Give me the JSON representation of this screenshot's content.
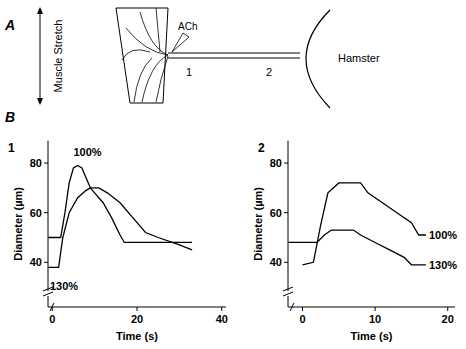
{
  "panel_a": {
    "label": "A",
    "stretch_label": "Muscle Stretch",
    "drug": "ACh",
    "sites": [
      "1",
      "2"
    ],
    "animal": "Hamster"
  },
  "panel_b_label": "B",
  "chart_data": [
    {
      "type": "line",
      "title": "1",
      "xlabel": "Time (s)",
      "ylabel": "Diameter (µm)",
      "xlim": [
        -1,
        41
      ],
      "xticks": [
        0,
        20,
        40
      ],
      "ylim": [
        22,
        89
      ],
      "yticks": [
        40,
        60,
        80
      ],
      "series": [
        {
          "name": "100%",
          "color": "#000000",
          "line_style": "solid",
          "x": [
            -1,
            2,
            3,
            4,
            5,
            6,
            7,
            8,
            9,
            10,
            12,
            14,
            16,
            17,
            33
          ],
          "values": [
            50,
            50,
            60,
            72,
            78,
            79,
            78,
            74,
            70,
            68,
            64,
            58,
            51,
            48,
            48
          ]
        },
        {
          "name": "130%",
          "color": "#000000",
          "line_style": "solid",
          "x": [
            -1,
            1.5,
            2.5,
            4,
            6,
            8,
            9,
            11,
            13,
            16,
            19,
            22,
            25,
            30,
            33
          ],
          "values": [
            38,
            38,
            50,
            60,
            66,
            69,
            70,
            70,
            68,
            64,
            58,
            52,
            50,
            47,
            45
          ]
        }
      ]
    },
    {
      "type": "line",
      "title": "2",
      "xlabel": "Time (s)",
      "ylabel": "Diameter (µm)",
      "xlim": [
        -2,
        21
      ],
      "xticks": [
        0,
        10,
        20
      ],
      "ylim": [
        22,
        89
      ],
      "yticks": [
        40,
        60,
        80
      ],
      "series": [
        {
          "name": "100%",
          "color": "#000000",
          "line_style": "solid",
          "x": [
            0,
            1.5,
            2.5,
            3.5,
            5,
            8,
            9,
            11,
            13,
            15,
            16,
            17
          ],
          "values": [
            39,
            40,
            55,
            68,
            72,
            72,
            68,
            64,
            60,
            56,
            51,
            51
          ]
        },
        {
          "name": "130%",
          "color": "#000000",
          "line_style": "solid",
          "x": [
            -2,
            2,
            3,
            4,
            5,
            7,
            8,
            10,
            12,
            14,
            15,
            17
          ],
          "values": [
            48,
            48,
            51,
            53,
            53,
            53,
            51,
            48,
            45,
            42,
            39,
            39
          ]
        }
      ]
    }
  ]
}
